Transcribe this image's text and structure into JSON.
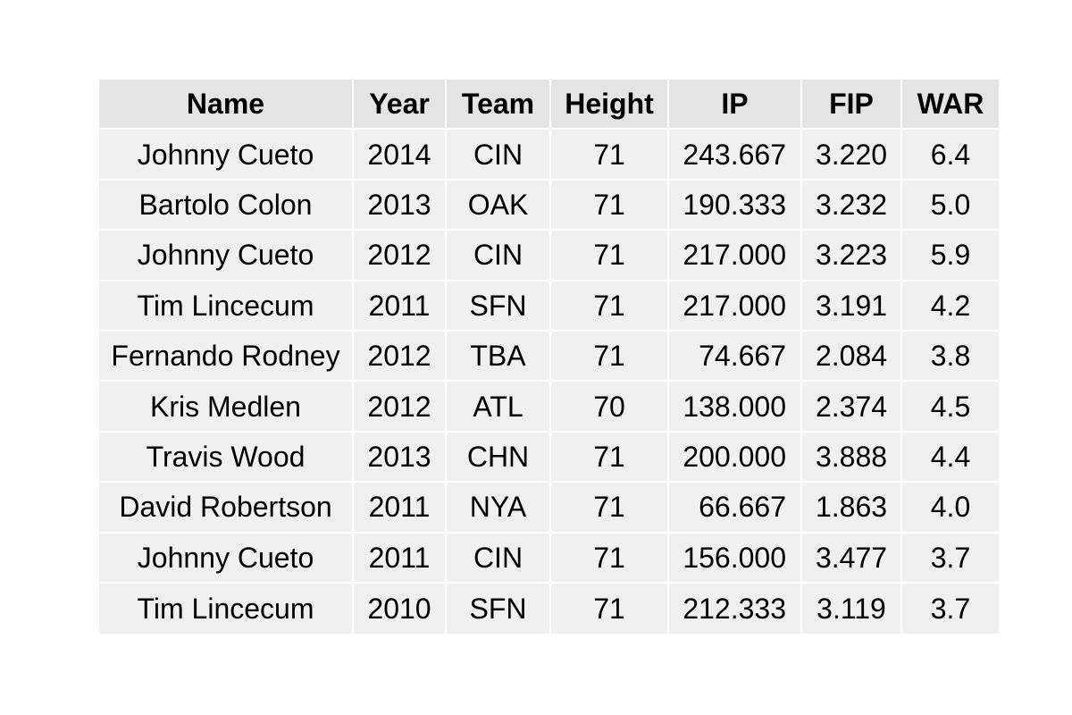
{
  "chart_data": {
    "type": "table",
    "columns": [
      "Name",
      "Year",
      "Team",
      "Height",
      "IP",
      "FIP",
      "WAR"
    ],
    "rows": [
      [
        "Johnny Cueto",
        "2014",
        "CIN",
        "71",
        "243.667",
        "3.220",
        "6.4"
      ],
      [
        "Bartolo Colon",
        "2013",
        "OAK",
        "71",
        "190.333",
        "3.232",
        "5.0"
      ],
      [
        "Johnny Cueto",
        "2012",
        "CIN",
        "71",
        "217.000",
        "3.223",
        "5.9"
      ],
      [
        "Tim Lincecum",
        "2011",
        "SFN",
        "71",
        "217.000",
        "3.191",
        "4.2"
      ],
      [
        "Fernando Rodney",
        "2012",
        "TBA",
        "71",
        "74.667",
        "2.084",
        "3.8"
      ],
      [
        "Kris Medlen",
        "2012",
        "ATL",
        "70",
        "138.000",
        "2.374",
        "4.5"
      ],
      [
        "Travis Wood",
        "2013",
        "CHN",
        "71",
        "200.000",
        "3.888",
        "4.4"
      ],
      [
        "David Robertson",
        "2011",
        "NYA",
        "71",
        "66.667",
        "1.863",
        "4.0"
      ],
      [
        "Johnny Cueto",
        "2011",
        "CIN",
        "71",
        "156.000",
        "3.477",
        "3.7"
      ],
      [
        "Tim Lincecum",
        "2010",
        "SFN",
        "71",
        "212.333",
        "3.119",
        "3.7"
      ]
    ],
    "colors": {
      "header_background": "#e4e4e4",
      "cell_background": "#f0f0f0",
      "grid_lines": "#ffffff",
      "text": "#000000"
    }
  }
}
